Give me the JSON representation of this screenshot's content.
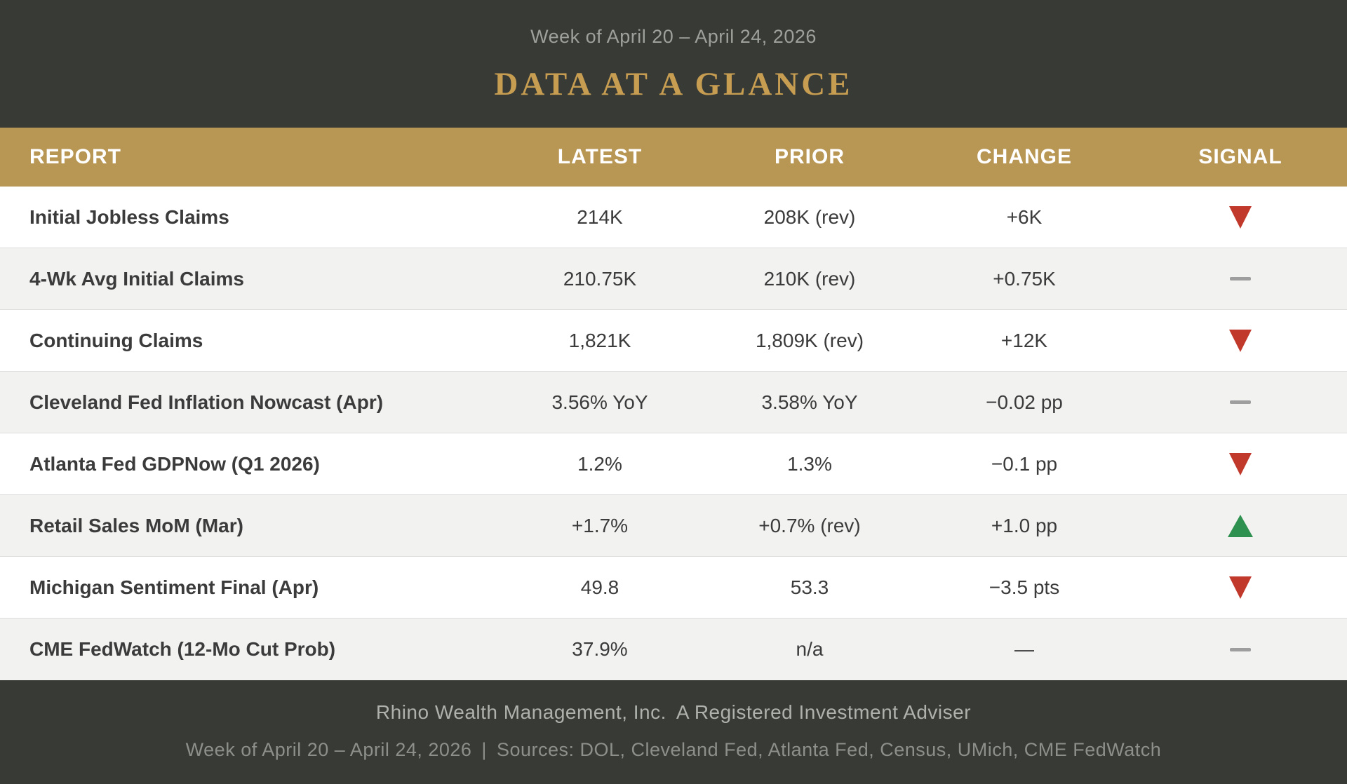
{
  "header": {
    "week_of": "Week of April 20 – April 24, 2026",
    "title": "DATA AT A GLANCE"
  },
  "table": {
    "columns": {
      "report": "REPORT",
      "latest": "LATEST",
      "prior": "PRIOR",
      "change": "CHANGE",
      "signal": "SIGNAL"
    },
    "rows": [
      {
        "report": "Initial Jobless Claims",
        "latest": "214K",
        "prior": "208K (rev)",
        "change": "+6K",
        "signal": "down"
      },
      {
        "report": "4-Wk Avg Initial Claims",
        "latest": "210.75K",
        "prior": "210K (rev)",
        "change": "+0.75K",
        "signal": "flat"
      },
      {
        "report": "Continuing Claims",
        "latest": "1,821K",
        "prior": "1,809K (rev)",
        "change": "+12K",
        "signal": "down"
      },
      {
        "report": "Cleveland Fed Inflation Nowcast (Apr)",
        "latest": "3.56% YoY",
        "prior": "3.58% YoY",
        "change": "−0.02 pp",
        "signal": "flat"
      },
      {
        "report": "Atlanta Fed GDPNow (Q1 2026)",
        "latest": "1.2%",
        "prior": "1.3%",
        "change": "−0.1 pp",
        "signal": "down"
      },
      {
        "report": "Retail Sales MoM (Mar)",
        "latest": "+1.7%",
        "prior": "+0.7% (rev)",
        "change": "+1.0 pp",
        "signal": "up"
      },
      {
        "report": "Michigan Sentiment Final (Apr)",
        "latest": "49.8",
        "prior": "53.3",
        "change": "−3.5 pts",
        "signal": "down"
      },
      {
        "report": "CME FedWatch (12-Mo Cut Prob)",
        "latest": "37.9%",
        "prior": "n/a",
        "change": "—",
        "signal": "flat"
      }
    ]
  },
  "footer": {
    "firm": "Rhino Wealth Management, Inc.",
    "tagline": "A Registered Investment Adviser",
    "week_of": "Week of April 20 – April 24, 2026",
    "divider": "|",
    "sources": "Sources: DOL, Cleveland Fed, Atlanta Fed, Census, UMich, CME FedWatch"
  },
  "colors": {
    "banner_dark": "#383a35",
    "table_header_gold": "#b89654",
    "title_gold": "#c79d52",
    "zebra_gray": "#f2f2f1",
    "text_dark": "#3b3b3b",
    "signal_down_red": "#c0392b",
    "signal_up_green": "#2e9150",
    "signal_flat_gray": "#9e9e9e"
  }
}
